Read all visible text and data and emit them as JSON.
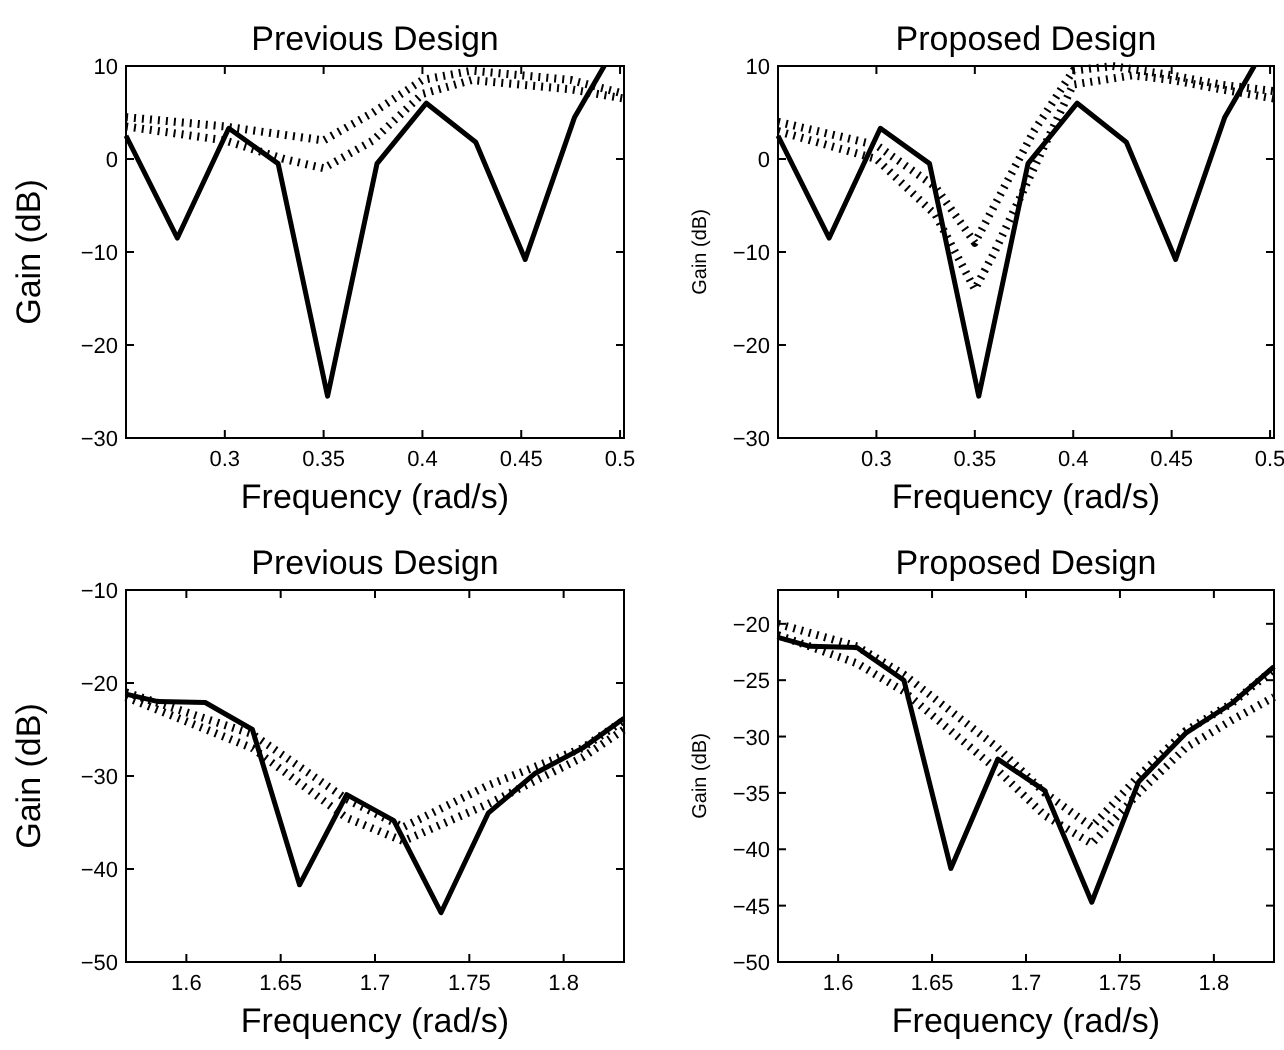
{
  "chart_data": [
    {
      "type": "line",
      "title": "Previous Design",
      "xlabel": "Frequency (rad/s)",
      "ylabel": "Gain (dB)",
      "xlim": [
        0.25,
        0.502
      ],
      "ylim": [
        -30,
        10
      ],
      "xticks": [
        0.3,
        0.35,
        0.4,
        0.45,
        0.5
      ],
      "yticks": [
        -30,
        -20,
        -10,
        0,
        10
      ],
      "grid": false,
      "series": [
        {
          "color": "#000000",
          "line_style": "dotted",
          "x": [
            0.25,
            0.3,
            0.35,
            0.375,
            0.4,
            0.425,
            0.45,
            0.475,
            0.502
          ],
          "values": [
            4.5,
            3.5,
            2,
            5,
            8.5,
            9.5,
            9,
            8.5,
            7
          ]
        },
        {
          "color": "#000000",
          "line_style": "dotted",
          "x": [
            0.25,
            0.3,
            0.33,
            0.35,
            0.375,
            0.4,
            0.425,
            0.45,
            0.475,
            0.502
          ],
          "values": [
            3.5,
            2,
            0,
            -1,
            2,
            7,
            8.5,
            8,
            7.5,
            6.5
          ]
        },
        {
          "color": "#000000",
          "line_style": "solid",
          "x": [
            0.25,
            0.276,
            0.302,
            0.327,
            0.352,
            0.377,
            0.402,
            0.427,
            0.452,
            0.477,
            0.492
          ],
          "values": [
            2.5,
            -8.5,
            3.3,
            -0.5,
            -25.5,
            -0.5,
            6,
            1.8,
            -10.8,
            4.5,
            10
          ]
        }
      ]
    },
    {
      "type": "line",
      "title": "Proposed Design",
      "xlabel": "Frequency (rad/s)",
      "ylabel": "Gain (dB)",
      "xlim": [
        0.25,
        0.502
      ],
      "ylim": [
        -30,
        10
      ],
      "xticks": [
        0.3,
        0.35,
        0.4,
        0.45,
        0.5
      ],
      "yticks": [
        -30,
        -20,
        -10,
        0,
        10
      ],
      "grid": false,
      "series": [
        {
          "color": "#000000",
          "line_style": "dotted",
          "x": [
            0.25,
            0.3,
            0.33,
            0.35,
            0.36,
            0.38,
            0.4,
            0.42,
            0.45,
            0.475,
            0.502
          ],
          "values": [
            4,
            1.5,
            -3,
            -9,
            -5,
            3,
            9.5,
            10,
            9,
            8,
            7.3
          ]
        },
        {
          "color": "#000000",
          "line_style": "dotted",
          "x": [
            0.25,
            0.3,
            0.33,
            0.35,
            0.36,
            0.38,
            0.4,
            0.43,
            0.45,
            0.475,
            0.502
          ],
          "values": [
            3,
            0,
            -6,
            -14,
            -10,
            -1,
            8,
            9,
            8.5,
            7.5,
            6.5
          ]
        },
        {
          "color": "#000000",
          "line_style": "solid",
          "x": [
            0.25,
            0.276,
            0.302,
            0.327,
            0.352,
            0.377,
            0.402,
            0.427,
            0.452,
            0.477,
            0.492
          ],
          "values": [
            2.5,
            -8.5,
            3.3,
            -0.5,
            -25.5,
            -0.5,
            6,
            1.8,
            -10.8,
            4.5,
            10
          ]
        }
      ]
    },
    {
      "type": "line",
      "title": "Previous Design",
      "xlabel": "Frequency (rad/s)",
      "ylabel": "Gain (dB)",
      "xlim": [
        1.568,
        1.832
      ],
      "ylim": [
        -50,
        -10
      ],
      "xticks": [
        1.6,
        1.65,
        1.7,
        1.75,
        1.8
      ],
      "yticks": [
        -50,
        -40,
        -30,
        -20,
        -10
      ],
      "grid": false,
      "series": [
        {
          "color": "#000000",
          "line_style": "dotted",
          "x": [
            1.568,
            1.635,
            1.685,
            1.715,
            1.76,
            1.81,
            1.832
          ],
          "values": [
            -21,
            -25.5,
            -32.5,
            -35.5,
            -31,
            -27,
            -24
          ]
        },
        {
          "color": "#000000",
          "line_style": "dotted",
          "x": [
            1.568,
            1.635,
            1.685,
            1.715,
            1.76,
            1.81,
            1.832
          ],
          "values": [
            -21.5,
            -27,
            -34.5,
            -37,
            -33,
            -28,
            -25
          ]
        },
        {
          "color": "#000000",
          "line_style": "solid",
          "x": [
            1.568,
            1.585,
            1.61,
            1.635,
            1.66,
            1.685,
            1.71,
            1.735,
            1.76,
            1.785,
            1.81,
            1.832
          ],
          "values": [
            -21.2,
            -22,
            -22.1,
            -25,
            -41.7,
            -32,
            -34.8,
            -44.7,
            -34,
            -29.7,
            -27,
            -23.8
          ]
        }
      ]
    },
    {
      "type": "line",
      "title": "Proposed Design",
      "xlabel": "Frequency (rad/s)",
      "ylabel": "Gain (dB)",
      "xlim": [
        1.568,
        1.832
      ],
      "ylim": [
        -50,
        -17
      ],
      "xticks": [
        1.6,
        1.65,
        1.7,
        1.75,
        1.8
      ],
      "yticks": [
        -50,
        -45,
        -40,
        -35,
        -30,
        -25,
        -20
      ],
      "grid": false,
      "series": [
        {
          "color": "#000000",
          "line_style": "dotted",
          "x": [
            1.568,
            1.61,
            1.635,
            1.685,
            1.71,
            1.735,
            1.76,
            1.785,
            1.81,
            1.832
          ],
          "values": [
            -20,
            -22,
            -24.5,
            -31,
            -35,
            -38,
            -33.5,
            -29.5,
            -27,
            -24
          ]
        },
        {
          "color": "#000000",
          "line_style": "dotted",
          "x": [
            1.568,
            1.61,
            1.635,
            1.685,
            1.71,
            1.735,
            1.76,
            1.785,
            1.81,
            1.832
          ],
          "values": [
            -21,
            -23.5,
            -26,
            -33,
            -37,
            -39.5,
            -35,
            -31,
            -28.5,
            -26.5
          ]
        },
        {
          "color": "#000000",
          "line_style": "solid",
          "x": [
            1.568,
            1.585,
            1.61,
            1.635,
            1.66,
            1.685,
            1.71,
            1.735,
            1.76,
            1.785,
            1.81,
            1.832
          ],
          "values": [
            -21.2,
            -22,
            -22.1,
            -25,
            -41.7,
            -32,
            -34.8,
            -44.7,
            -34,
            -29.7,
            -27,
            -23.8
          ]
        }
      ]
    }
  ]
}
